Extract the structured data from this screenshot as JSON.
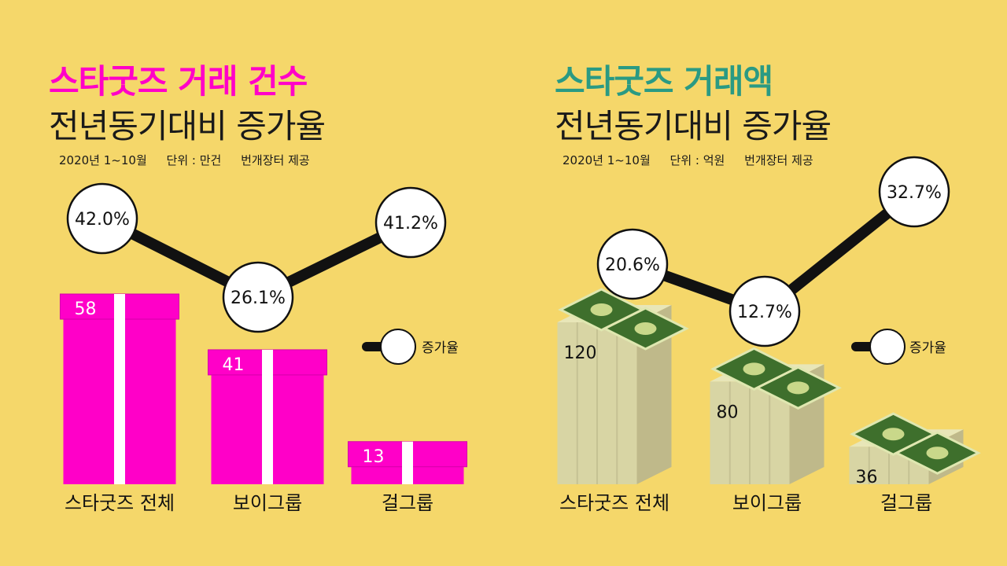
{
  "colors": {
    "background": "#f5d76a",
    "magenta": "#ff00c8",
    "teal": "#2a9a83",
    "line": "#111111"
  },
  "chart_data": [
    {
      "type": "bar",
      "title": "스타굿즈 거래 건수",
      "subtitle": "전년동기대비 증가율",
      "meta": {
        "period": "2020년 1~10월",
        "unit": "단위 : 만건",
        "source": "번개장터 제공"
      },
      "categories": [
        "스타굿즈 전체",
        "보이그룹",
        "걸그룹"
      ],
      "series": [
        {
          "values": [
            58,
            41,
            13
          ]
        },
        {
          "name": "증가율",
          "values": [
            42.0,
            26.1,
            41.2
          ],
          "labels": [
            "42.0%",
            "26.1%",
            "41.2%"
          ]
        }
      ],
      "legend": "right",
      "icon": "gift-box-icon"
    },
    {
      "type": "bar",
      "title": "스타굿즈 거래액",
      "subtitle": "전년동기대비 증가율",
      "meta": {
        "period": "2020년 1~10월",
        "unit": "단위 : 억원",
        "source": "번개장터 제공"
      },
      "categories": [
        "스타굿즈 전체",
        "보이그룹",
        "걸그룹"
      ],
      "series": [
        {
          "values": [
            120,
            80,
            36
          ]
        },
        {
          "name": "증가율",
          "values": [
            20.6,
            12.7,
            32.7
          ],
          "labels": [
            "20.6%",
            "12.7%",
            "32.7%"
          ]
        }
      ],
      "legend": "right",
      "icon": "money-stack-icon"
    }
  ]
}
